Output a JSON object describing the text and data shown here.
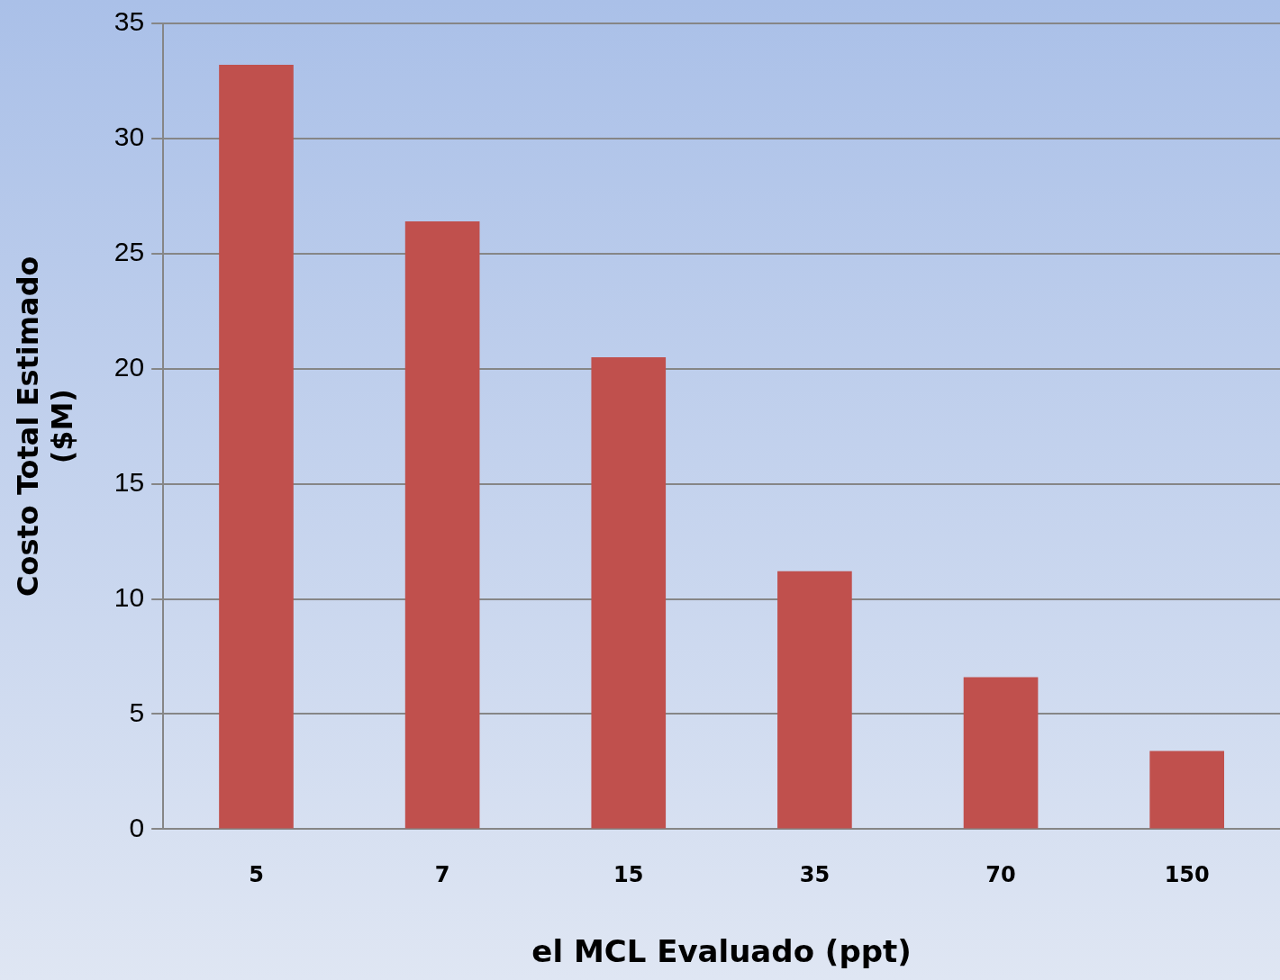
{
  "chart_data": {
    "type": "bar",
    "xlabel": "el MCL Evaluado (ppt)",
    "ylabel": "Costo Total Estimado ($M)",
    "categories": [
      "5",
      "7",
      "15",
      "35",
      "70",
      "150"
    ],
    "series": [
      {
        "color": "#c0504d",
        "values": [
          33.2,
          26.4,
          20.5,
          11.2,
          6.6,
          3.4
        ]
      }
    ],
    "ylim": [
      0,
      35
    ],
    "yticks": [
      0,
      5,
      10,
      15,
      20,
      25,
      30,
      35
    ],
    "grid": "y",
    "legend": false
  }
}
